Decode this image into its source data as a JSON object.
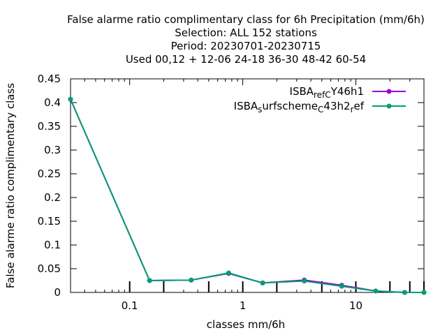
{
  "chart_data": {
    "type": "line",
    "title_lines": [
      "False alarme ratio complimentary class  for 6h Precipitation (mm/6h)",
      "Selection: ALL    152 stations",
      "Period: 20230701-20230715",
      "Used  00,12  + 12-06 24-18 36-30 48-42 60-54"
    ],
    "xlabel": "classes mm/6h",
    "ylabel": "False alarme ratio complimentary class",
    "x_scale": "log",
    "xlim": [
      0.03,
      40
    ],
    "ylim": [
      0,
      0.45
    ],
    "x_ticks": [
      {
        "value": 0.1,
        "label": "0.1"
      },
      {
        "value": 1,
        "label": "1"
      },
      {
        "value": 10,
        "label": "10"
      }
    ],
    "y_ticks": [
      {
        "value": 0,
        "label": "0"
      },
      {
        "value": 0.05,
        "label": "0.05"
      },
      {
        "value": 0.1,
        "label": "0.1"
      },
      {
        "value": 0.15,
        "label": "0.15"
      },
      {
        "value": 0.2,
        "label": "0.2"
      },
      {
        "value": 0.25,
        "label": "0.25"
      },
      {
        "value": 0.3,
        "label": "0.3"
      },
      {
        "value": 0.35,
        "label": "0.35"
      },
      {
        "value": 0.4,
        "label": "0.4"
      },
      {
        "value": 0.45,
        "label": "0.45"
      }
    ],
    "class_marks": [
      0.1,
      0.2,
      0.5,
      1,
      2,
      5,
      10,
      20,
      30,
      40
    ],
    "legend_position": "top-right",
    "series": [
      {
        "name": "ISBA_ref_CY46h1",
        "legend_parts": [
          [
            "ISBA",
            ""
          ],
          [
            "ref",
            "sub"
          ],
          [
            "C",
            "sub"
          ],
          [
            "Y46h1",
            ""
          ]
        ],
        "color": "#9400d3",
        "x": [
          0.03,
          0.15,
          0.35,
          0.75,
          1.5,
          3.5,
          7.5,
          15,
          27,
          40
        ],
        "y": [
          0.407,
          0.025,
          0.026,
          0.04,
          0.02,
          0.026,
          0.015,
          0.003,
          0.0,
          0.0
        ]
      },
      {
        "name": "ISBA_surfscheme_C43h2_ref",
        "legend_parts": [
          [
            "ISBA",
            ""
          ],
          [
            "s",
            "sub"
          ],
          [
            "urfscheme",
            ""
          ],
          [
            "C",
            "sub"
          ],
          [
            "43h2",
            ""
          ],
          [
            "r",
            "sub"
          ],
          [
            "ef",
            ""
          ]
        ],
        "color": "#009e73",
        "x": [
          0.03,
          0.15,
          0.35,
          0.75,
          1.5,
          3.5,
          7.5,
          15,
          27,
          40
        ],
        "y": [
          0.407,
          0.025,
          0.026,
          0.041,
          0.02,
          0.024,
          0.013,
          0.003,
          0.0,
          0.0
        ]
      }
    ]
  }
}
